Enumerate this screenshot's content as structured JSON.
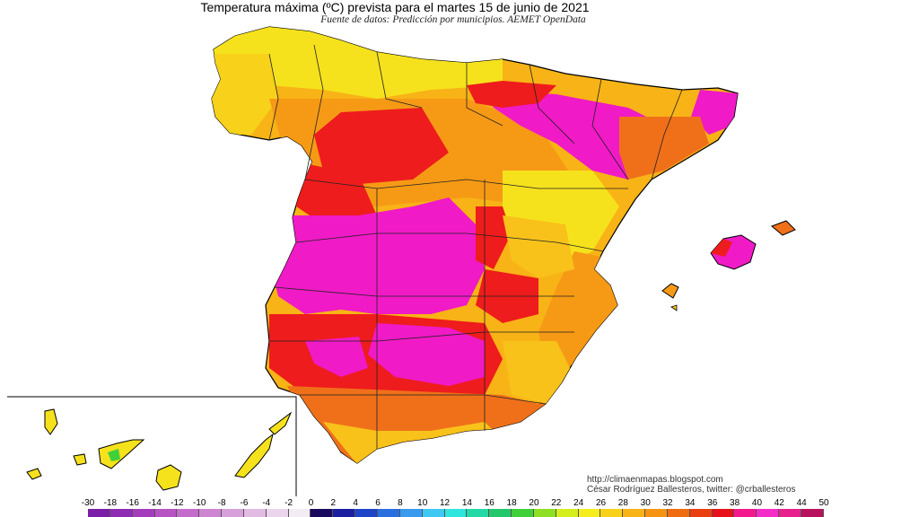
{
  "title": "Temperatura máxima (ºC) prevista para el martes 15 de junio de 2021",
  "subtitle": "Fuente de datos: Predicción por municipios. AEMET OpenData",
  "credit": {
    "line1": "http://climaenmapas.blogspot.com",
    "line2": "César Rodríguez Ballesteros, twitter: @crballesteros"
  },
  "legend": {
    "ticks": [
      "-30",
      "-18",
      "-16",
      "-14",
      "-12",
      "-10",
      "-8",
      "-6",
      "-4",
      "-2",
      "0",
      "2",
      "4",
      "6",
      "8",
      "10",
      "12",
      "14",
      "16",
      "18",
      "20",
      "22",
      "24",
      "26",
      "28",
      "30",
      "32",
      "34",
      "36",
      "38",
      "40",
      "42",
      "44",
      "50"
    ],
    "colors": [
      "#7a1fa8",
      "#8e2cb3",
      "#a33dbb",
      "#b753c3",
      "#c46ccb",
      "#cf86d2",
      "#d8a0da",
      "#e1bbe2",
      "#ebd5ec",
      "#f4ecf5",
      "#1a0a5e",
      "#1c1fa0",
      "#1e45c8",
      "#2a6fe0",
      "#3a9aee",
      "#3fc8f2",
      "#2fe6de",
      "#25d9a6",
      "#24c86c",
      "#3fd03a",
      "#8ee025",
      "#d4ee1e",
      "#f6ee1c",
      "#f8d21a",
      "#f8b316",
      "#f69312",
      "#f06c10",
      "#ea3f10",
      "#e8101a",
      "#f41a8e",
      "#f42cc8",
      "#e8208e",
      "#b8125e",
      "#7a0e26"
    ],
    "colors_comment": "",
    "mapped_categories": {
      "yellow": "#f6e21c",
      "orange-yellow": "#f8c21a",
      "orange": "#f69a16",
      "dark-orange": "#f0701a",
      "red": "#ee1c1c",
      "magenta": "#f01ac6"
    }
  },
  "inset": "Canarias"
}
